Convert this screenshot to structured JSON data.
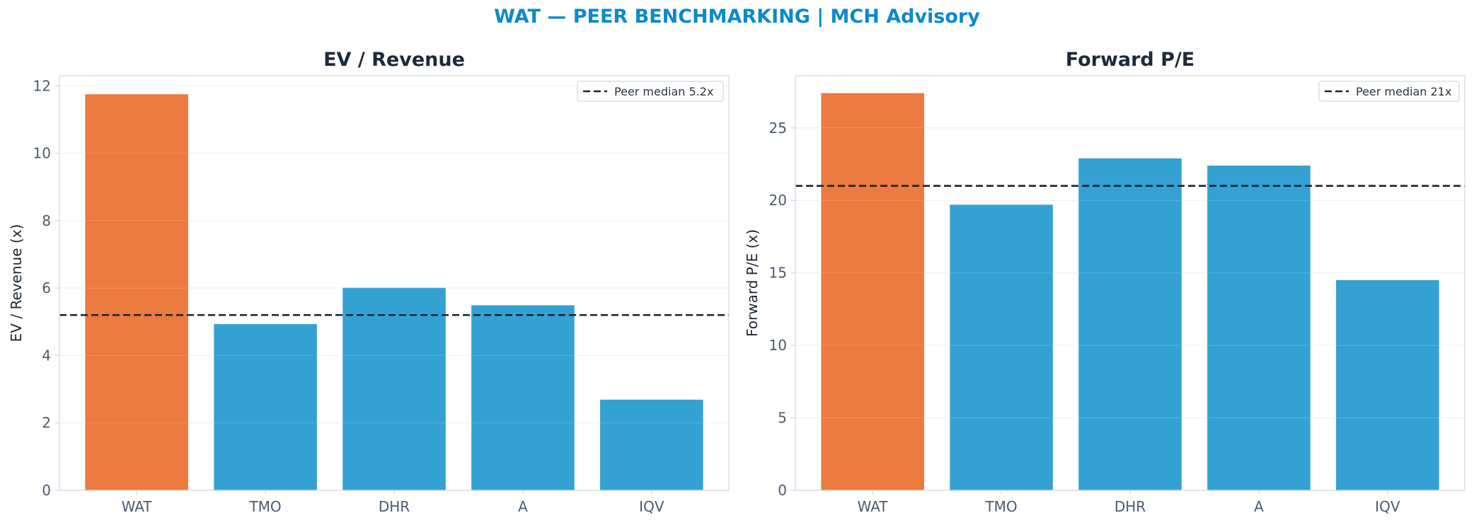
{
  "figure": {
    "suptitle": "WAT — PEER BENCHMARKING | MCH Advisory"
  },
  "colors": {
    "highlight": "#ed7a3e",
    "peer": "#33a2d3",
    "median_line": "#1a2333",
    "suptitle": "#0b8ac9",
    "title": "#1c2b3a",
    "tick": "#4a5b6e",
    "frame": "#d3d8de"
  },
  "chart_data": [
    {
      "type": "bar",
      "title": "EV / Revenue",
      "xlabel": "",
      "ylabel": "EV / Revenue (x)",
      "categories": [
        "WAT",
        "TMO",
        "DHR",
        "A",
        "IQV"
      ],
      "values": [
        11.75,
        4.93,
        6.01,
        5.49,
        2.69
      ],
      "highlight": "WAT",
      "ylim": [
        0,
        12.3
      ],
      "yticks": [
        0,
        2,
        4,
        6,
        8,
        10,
        12
      ],
      "reference_line": {
        "value": 5.2,
        "label": "Peer median 5.2x",
        "style": "dashed"
      },
      "legend_position": "top-right",
      "grid": true
    },
    {
      "type": "bar",
      "title": "Forward P/E",
      "xlabel": "",
      "ylabel": "Forward P/E (x)",
      "categories": [
        "WAT",
        "TMO",
        "DHR",
        "A",
        "IQV"
      ],
      "values": [
        27.4,
        19.7,
        22.9,
        22.4,
        14.5
      ],
      "highlight": "WAT",
      "ylim": [
        0,
        28.6
      ],
      "yticks": [
        0,
        5,
        10,
        15,
        20,
        25
      ],
      "reference_line": {
        "value": 21,
        "label": "Peer median 21x",
        "style": "dashed"
      },
      "legend_position": "top-right",
      "grid": true
    }
  ]
}
